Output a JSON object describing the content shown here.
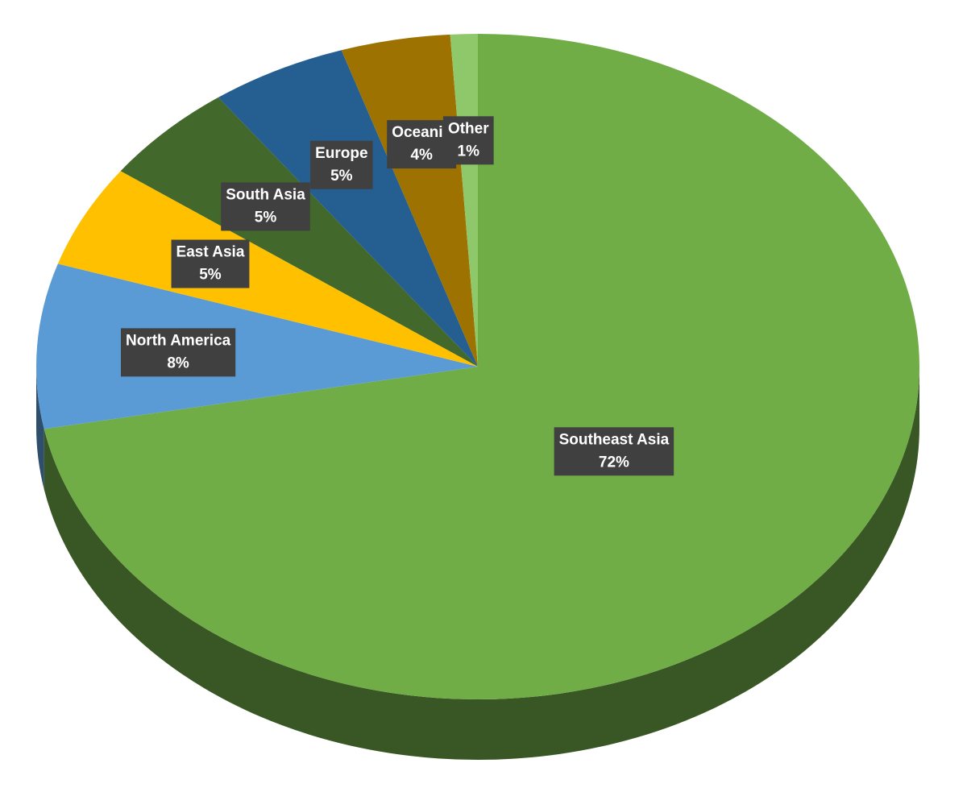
{
  "chart_data": {
    "type": "pie",
    "categories": [
      "Southeast Asia",
      "North America",
      "East Asia",
      "South Asia",
      "Europe",
      "Oceania",
      "Other"
    ],
    "values": [
      72,
      8,
      5,
      5,
      5,
      4,
      1
    ],
    "value_labels": [
      "72%",
      "8%",
      "5%",
      "5%",
      "5%",
      "4%",
      "1%"
    ],
    "colors": [
      "#70ad47",
      "#5b9bd5",
      "#ffc000",
      "#43682b",
      "#255e91",
      "#9e7200",
      "#8fc86a"
    ]
  }
}
